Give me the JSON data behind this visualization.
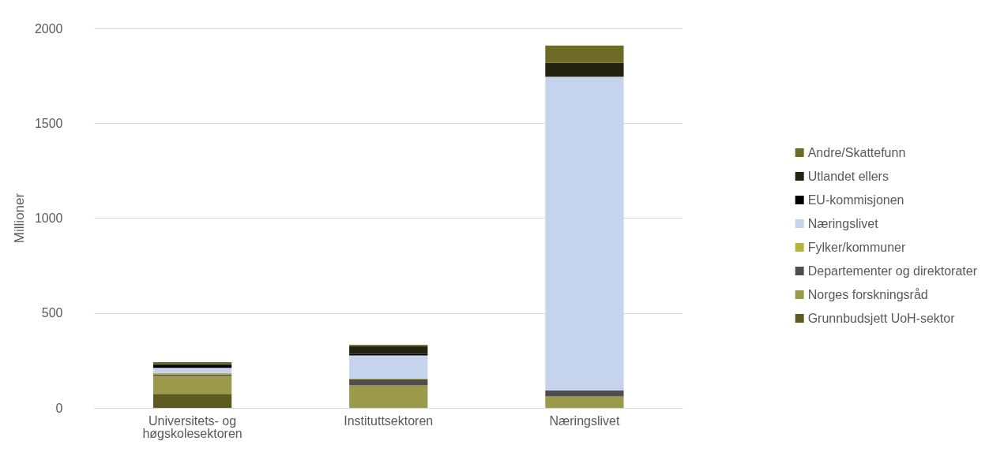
{
  "chart_data": {
    "type": "bar",
    "stacked": true,
    "ylabel": "Millioner",
    "categories": [
      "Universitets- og høgskolesektoren",
      "Instituttsektoren",
      "Næringslivet"
    ],
    "ylim": [
      0,
      2000
    ],
    "yticks": [
      0,
      500,
      1000,
      1500,
      2000
    ],
    "grid": "y",
    "legend": "right",
    "series": [
      {
        "name": "Grunnbudsjett UoH-sektor",
        "color": "#5c5a1e",
        "values": [
          74,
          0,
          0
        ]
      },
      {
        "name": "Norges forskningsråd",
        "color": "#9a9a4a",
        "values": [
          94,
          118,
          60
        ]
      },
      {
        "name": "Departementer og direktorater",
        "color": "#4d4d4d",
        "values": [
          9,
          32,
          31
        ]
      },
      {
        "name": "Fylker/kommuner",
        "color": "#b5b53a",
        "values": [
          7,
          4,
          0
        ]
      },
      {
        "name": "Næringslivet",
        "color": "#c5d3ec",
        "values": [
          27,
          123,
          1654
        ]
      },
      {
        "name": "EU-kommisjonen",
        "color": "#000000",
        "values": [
          17,
          7,
          0
        ]
      },
      {
        "name": "Utlandet ellers",
        "color": "#23230f",
        "values": [
          4,
          42,
          74
        ]
      },
      {
        "name": "Andre/Skattefunn",
        "color": "#6e6b25",
        "values": [
          9,
          7,
          91
        ]
      }
    ]
  }
}
